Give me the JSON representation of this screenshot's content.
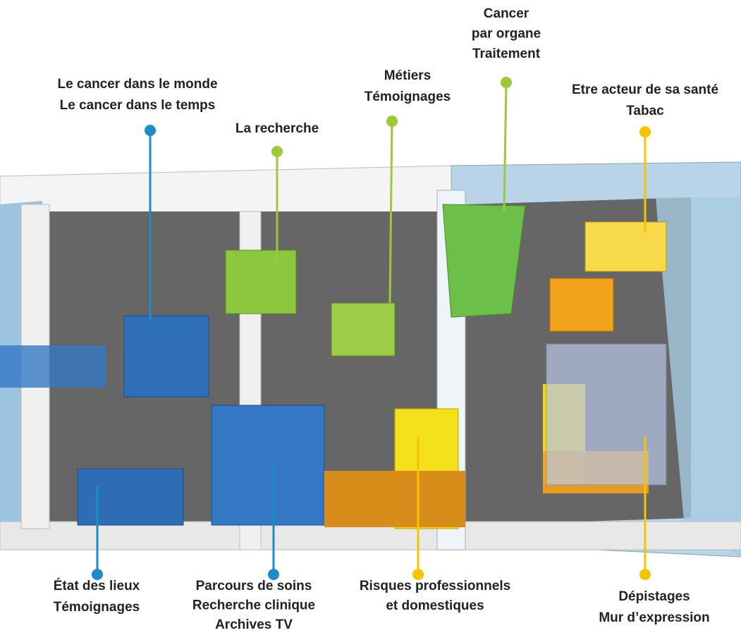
{
  "labels": [
    {
      "lines": [
        "Le cancer dans le monde",
        "Le cancer dans le temps"
      ]
    },
    {
      "lines": [
        "La recherche"
      ]
    },
    {
      "lines": [
        "Métiers",
        "Témoignages"
      ]
    },
    {
      "lines": [
        "Cancer",
        "par organe",
        "Traitement"
      ]
    },
    {
      "lines": [
        "Etre acteur de sa santé",
        "Tabac"
      ]
    },
    {
      "lines": [
        "État des lieux",
        "Témoignages"
      ]
    },
    {
      "lines": [
        "Parcours de soins",
        "Recherche clinique",
        "Archives TV"
      ]
    },
    {
      "lines": [
        "Risques professionnels",
        "et domestiques"
      ]
    },
    {
      "lines": [
        "Dépistages",
        "Mur d’expression"
      ]
    }
  ]
}
